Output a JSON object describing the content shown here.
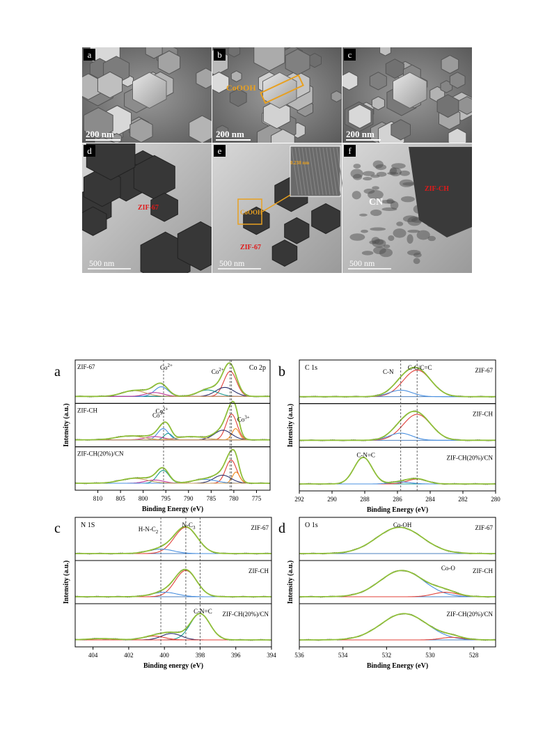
{
  "colors": {
    "experimental": "#8fbf3a",
    "envelope": "#b8c84a",
    "baseline": "#4a7fbf",
    "fit_red": "#e0403a",
    "fit_orange": "#f0891c",
    "fit_teal": "#1a9a90",
    "fit_magenta": "#c33a9a",
    "fit_navy": "#2a2f6b",
    "fit_blue": "#4a90e0",
    "fit_tan": "#c8a060",
    "sem_overlay": "#e8a020",
    "tem_red_label": "#e01a1a",
    "tag_bg": "#000000",
    "tag_fg": "#ffffff"
  },
  "micrographs": {
    "panels": [
      {
        "tag": "a",
        "kind": "sem",
        "scale": "200 nm",
        "labels": []
      },
      {
        "tag": "b",
        "kind": "sem",
        "scale": "200 nm",
        "labels": [
          "CoOOH"
        ]
      },
      {
        "tag": "c",
        "kind": "sem",
        "scale": "200 nm",
        "labels": []
      },
      {
        "tag": "d",
        "kind": "tem",
        "scale": "500 nm",
        "labels": [
          "ZIF-67"
        ]
      },
      {
        "tag": "e",
        "kind": "tem",
        "scale": "500 nm",
        "labels": [
          "CoOOH",
          "ZIF-67",
          "0.238 nm"
        ]
      },
      {
        "tag": "f",
        "kind": "tem",
        "scale": "500 nm",
        "labels": [
          "CN",
          "ZIF-CH"
        ]
      }
    ]
  },
  "chart_data": [
    {
      "type": "line",
      "panel": "a",
      "title": "Co 2p",
      "xlabel": "Binding Energy (eV)",
      "ylabel": "Intensity (a.u.)",
      "xlim": [
        815,
        772
      ],
      "xticks": [
        810,
        805,
        800,
        795,
        790,
        785,
        780,
        775
      ],
      "rows": [
        {
          "name": "ZIF-67",
          "annotations": [
            {
              "text": "Co",
              "sup": "2+",
              "x": 795.5
            },
            {
              "text": "Co",
              "sup": "2+",
              "x": 780.8
            }
          ],
          "peaks": [
            {
              "c": 780.8,
              "w": 1.4,
              "h": 0.78,
              "color": "fit_red"
            },
            {
              "c": 782.0,
              "w": 2.0,
              "h": 0.28,
              "color": "fit_navy"
            },
            {
              "c": 785.8,
              "w": 2.2,
              "h": 0.2,
              "color": "fit_teal"
            },
            {
              "c": 796.0,
              "w": 1.5,
              "h": 0.3,
              "color": "fit_blue"
            },
            {
              "c": 797.5,
              "w": 2.0,
              "h": 0.12,
              "color": "fit_magenta"
            },
            {
              "c": 802.0,
              "w": 2.6,
              "h": 0.18,
              "color": "fit_tan"
            }
          ]
        },
        {
          "name": "ZIF-CH",
          "annotations": [
            {
              "text": "Co",
              "sup": "2+",
              "x": 796.5
            },
            {
              "text": "Co",
              "sup": "3+",
              "x": 793.8
            },
            {
              "text": "Co",
              "sup": "3+",
              "x": 778.5
            }
          ],
          "peaks": [
            {
              "c": 780.5,
              "w": 1.2,
              "h": 0.8,
              "color": "fit_red"
            },
            {
              "c": 779.6,
              "w": 0.8,
              "h": 0.35,
              "color": "fit_orange"
            },
            {
              "c": 782.4,
              "w": 1.9,
              "h": 0.3,
              "color": "fit_navy"
            },
            {
              "c": 795.6,
              "w": 1.2,
              "h": 0.35,
              "color": "fit_blue"
            },
            {
              "c": 794.5,
              "w": 0.9,
              "h": 0.2,
              "color": "fit_teal"
            },
            {
              "c": 797.5,
              "w": 2.0,
              "h": 0.1,
              "color": "fit_magenta"
            },
            {
              "c": 789.5,
              "w": 3.0,
              "h": 0.1,
              "color": "fit_tan"
            },
            {
              "c": 803.0,
              "w": 3.0,
              "h": 0.12,
              "color": "fit_tan"
            }
          ]
        },
        {
          "name": "ZIF-CH(20%)/CN",
          "annotations": [],
          "peaks": [
            {
              "c": 780.6,
              "w": 1.2,
              "h": 0.72,
              "color": "fit_red"
            },
            {
              "c": 779.5,
              "w": 0.8,
              "h": 0.35,
              "color": "fit_orange"
            },
            {
              "c": 782.5,
              "w": 1.9,
              "h": 0.25,
              "color": "fit_navy"
            },
            {
              "c": 795.6,
              "w": 1.3,
              "h": 0.4,
              "color": "fit_teal"
            },
            {
              "c": 797.5,
              "w": 2.0,
              "h": 0.1,
              "color": "fit_magenta"
            },
            {
              "c": 786.5,
              "w": 2.6,
              "h": 0.12,
              "color": "fit_blue"
            },
            {
              "c": 802.0,
              "w": 3.0,
              "h": 0.15,
              "color": "fit_tan"
            }
          ]
        }
      ],
      "refs": [
        795.5,
        780.8,
        780.5
      ]
    },
    {
      "type": "line",
      "panel": "b",
      "title": "C 1s",
      "xlabel": "Binding Energy (eV)",
      "ylabel": "Intensity (a.u.)",
      "xlim": [
        292,
        280
      ],
      "xticks": [
        292,
        290,
        288,
        286,
        284,
        282,
        280
      ],
      "rows": [
        {
          "name": "ZIF-67",
          "annotations": [
            {
              "text": "C-C/C=C",
              "sup": "",
              "x": 284.8
            },
            {
              "text": "C-N",
              "sup": "",
              "x": 285.8
            }
          ],
          "peaks": [
            {
              "c": 284.8,
              "w": 0.85,
              "h": 0.82,
              "color": "fit_red"
            },
            {
              "c": 285.8,
              "w": 0.7,
              "h": 0.2,
              "color": "fit_blue"
            }
          ]
        },
        {
          "name": "ZIF-CH",
          "annotations": [],
          "peaks": [
            {
              "c": 284.8,
              "w": 0.85,
              "h": 0.8,
              "color": "fit_red"
            },
            {
              "c": 285.8,
              "w": 0.7,
              "h": 0.22,
              "color": "fit_blue"
            }
          ]
        },
        {
          "name": "ZIF-CH(20%)/CN",
          "annotations": [
            {
              "text": "C-N=C",
              "sup": "",
              "x": 288.1
            }
          ],
          "peaks": [
            {
              "c": 288.1,
              "w": 0.55,
              "h": 0.82,
              "color": "fit_teal"
            },
            {
              "c": 284.8,
              "w": 0.6,
              "h": 0.15,
              "color": "fit_red"
            },
            {
              "c": 285.8,
              "w": 0.6,
              "h": 0.06,
              "color": "fit_blue"
            }
          ]
        }
      ],
      "refs": [
        285.8,
        284.8
      ]
    },
    {
      "type": "line",
      "panel": "c",
      "title": "N 1S",
      "xlabel": "Binding energy (eV)",
      "ylabel": "Intensity (a.u.)",
      "xlim": [
        405,
        394
      ],
      "xticks": [
        404,
        402,
        400,
        398,
        396,
        394
      ],
      "rows": [
        {
          "name": "ZIF-67",
          "annotations": [
            {
              "text": "N-C",
              "sub": "3",
              "x": 398.8
            },
            {
              "text": "H-N-C",
              "sub": "2",
              "x": 400.2
            }
          ],
          "peaks": [
            {
              "c": 398.8,
              "w": 0.65,
              "h": 0.82,
              "color": "fit_red"
            },
            {
              "c": 400.2,
              "w": 0.7,
              "h": 0.14,
              "color": "fit_blue"
            }
          ]
        },
        {
          "name": "ZIF-CH",
          "annotations": [],
          "peaks": [
            {
              "c": 398.8,
              "w": 0.6,
              "h": 0.82,
              "color": "fit_red"
            },
            {
              "c": 400.0,
              "w": 0.7,
              "h": 0.14,
              "color": "fit_blue"
            }
          ]
        },
        {
          "name": "ZIF-CH(20%)/CN",
          "annotations": [
            {
              "text": "C-N=C",
              "sub": "",
              "x": 398.0
            }
          ],
          "peaks": [
            {
              "c": 398.0,
              "w": 0.55,
              "h": 0.82,
              "color": "fit_teal"
            },
            {
              "c": 399.6,
              "w": 0.55,
              "h": 0.2,
              "color": "fit_navy"
            },
            {
              "c": 400.6,
              "w": 0.6,
              "h": 0.12,
              "color": "fit_red"
            },
            {
              "c": 403.5,
              "w": 0.8,
              "h": 0.04,
              "color": "fit_red"
            }
          ]
        }
      ],
      "refs": [
        400.2,
        398.8,
        398.0
      ]
    },
    {
      "type": "line",
      "panel": "d",
      "title": "O 1s",
      "xlabel": "Binding Energy (eV)",
      "ylabel": "Intensity (a.u.)",
      "xlim": [
        536,
        527
      ],
      "xticks": [
        536,
        534,
        532,
        530,
        528
      ],
      "rows": [
        {
          "name": "ZIF-67",
          "annotations": [
            {
              "text": "Co-OH",
              "sup": "",
              "x": 531.4
            }
          ],
          "peaks": [
            {
              "c": 531.4,
              "w": 1.05,
              "h": 0.82,
              "color": "fit_blue"
            }
          ]
        },
        {
          "name": "ZIF-CH",
          "annotations": [
            {
              "text": "Co-O",
              "sup": "",
              "x": 529.3
            }
          ],
          "peaks": [
            {
              "c": 531.3,
              "w": 1.0,
              "h": 0.82,
              "color": "fit_blue"
            },
            {
              "c": 529.3,
              "w": 0.55,
              "h": 0.14,
              "color": "fit_red"
            }
          ]
        },
        {
          "name": "ZIF-CH(20%)/CN",
          "annotations": [],
          "peaks": [
            {
              "c": 531.2,
              "w": 1.05,
              "h": 0.82,
              "color": "fit_blue"
            },
            {
              "c": 529.0,
              "w": 0.5,
              "h": 0.08,
              "color": "fit_red"
            }
          ]
        }
      ],
      "refs": []
    }
  ]
}
